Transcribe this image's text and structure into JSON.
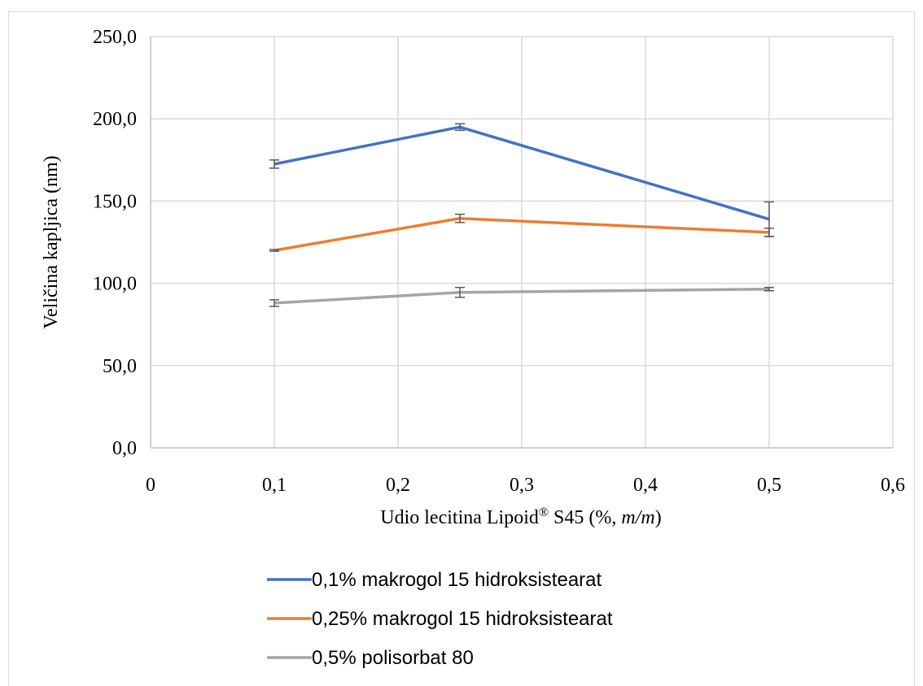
{
  "chart_data": {
    "type": "line",
    "xlabel": {
      "main": "Udio lecitina Lipoid",
      "sup": "®",
      "rest": " S45 (%, ",
      "italic": "m/m",
      "end": ")"
    },
    "ylabel": "Veličina kapljica (nm)",
    "xlim": [
      0,
      0.6
    ],
    "ylim": [
      0,
      250
    ],
    "x_ticks": [
      0,
      0.1,
      0.2,
      0.3,
      0.4,
      0.5,
      0.6
    ],
    "x_tick_labels": [
      "0",
      "0,1",
      "0,2",
      "0,3",
      "0,4",
      "0,5",
      "0,6"
    ],
    "y_ticks": [
      0,
      50,
      100,
      150,
      200,
      250
    ],
    "y_tick_labels": [
      "0,0",
      "50,0",
      "100,0",
      "150,0",
      "200,0",
      "250,0"
    ],
    "grid": true,
    "legend_position": "bottom",
    "series": [
      {
        "name": "0,1% makrogol 15 hidroksistearat",
        "color": "#4472c4",
        "x": [
          0.1,
          0.25,
          0.5
        ],
        "y": [
          172.5,
          195.0,
          139.0
        ],
        "err": [
          2.5,
          2.0,
          10.5
        ]
      },
      {
        "name": "0,25% makrogol 15 hidroksistearat",
        "color": "#ed7d31",
        "x": [
          0.1,
          0.25,
          0.5
        ],
        "y": [
          120.0,
          139.5,
          131.0
        ],
        "err": [
          0.5,
          2.5,
          2.5
        ]
      },
      {
        "name": "0,5% polisorbat 80",
        "color": "#a5a5a5",
        "x": [
          0.1,
          0.25,
          0.5
        ],
        "y": [
          88.0,
          94.5,
          96.5
        ],
        "err": [
          2.0,
          3.0,
          1.0
        ]
      }
    ]
  }
}
